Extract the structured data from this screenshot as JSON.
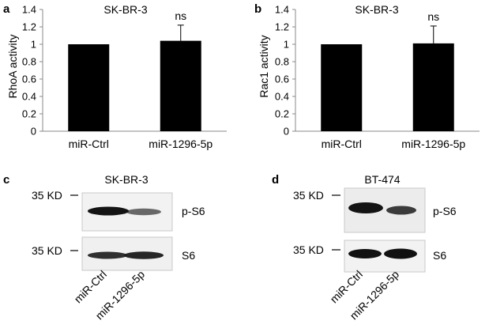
{
  "chart_data": [
    {
      "panel": "a",
      "type": "bar",
      "title": "SK-BR-3",
      "ylabel": "RhoA activity",
      "xlabel": "",
      "ylim": [
        0,
        1.4
      ],
      "yticks": [
        "0",
        "0.2",
        "0.4",
        "0.6",
        "0.8",
        "1",
        "1.2",
        "1.4"
      ],
      "grid": false,
      "categories": [
        "miR-Ctrl",
        "miR-1296-5p"
      ],
      "values": [
        1.0,
        1.04
      ],
      "error": [
        0,
        0.18
      ],
      "annotations": [
        "",
        "ns"
      ],
      "color": "#000000"
    },
    {
      "panel": "b",
      "type": "bar",
      "title": "SK-BR-3",
      "ylabel": "Rac1 activity",
      "xlabel": "",
      "ylim": [
        0,
        1.4
      ],
      "yticks": [
        "0",
        "0.2",
        "0.4",
        "0.6",
        "0.8",
        "1",
        "1.2",
        "1.4"
      ],
      "grid": false,
      "categories": [
        "miR-Ctrl",
        "miR-1296-5p"
      ],
      "values": [
        1.0,
        1.01
      ],
      "error": [
        0,
        0.2
      ],
      "annotations": [
        "",
        "ns"
      ],
      "color": "#000000"
    }
  ],
  "blots": [
    {
      "panel": "c",
      "title": "SK-BR-3",
      "rows": [
        {
          "marker": "35 KD",
          "protein": "p-S6",
          "band_intensity": [
            1.0,
            0.55
          ]
        },
        {
          "marker": "35 KD",
          "protein": "S6",
          "band_intensity": [
            0.9,
            0.95
          ]
        }
      ],
      "lanes": [
        "miR-Ctrl",
        "miR-1296-5p"
      ]
    },
    {
      "panel": "d",
      "title": "BT-474",
      "rows": [
        {
          "marker": "35 KD",
          "protein": "p-S6",
          "band_intensity": [
            1.0,
            0.75
          ]
        },
        {
          "marker": "35 KD",
          "protein": "S6",
          "band_intensity": [
            0.95,
            1.0
          ]
        }
      ],
      "lanes": [
        "miR-Ctrl",
        "miR-1296-5p"
      ]
    }
  ]
}
